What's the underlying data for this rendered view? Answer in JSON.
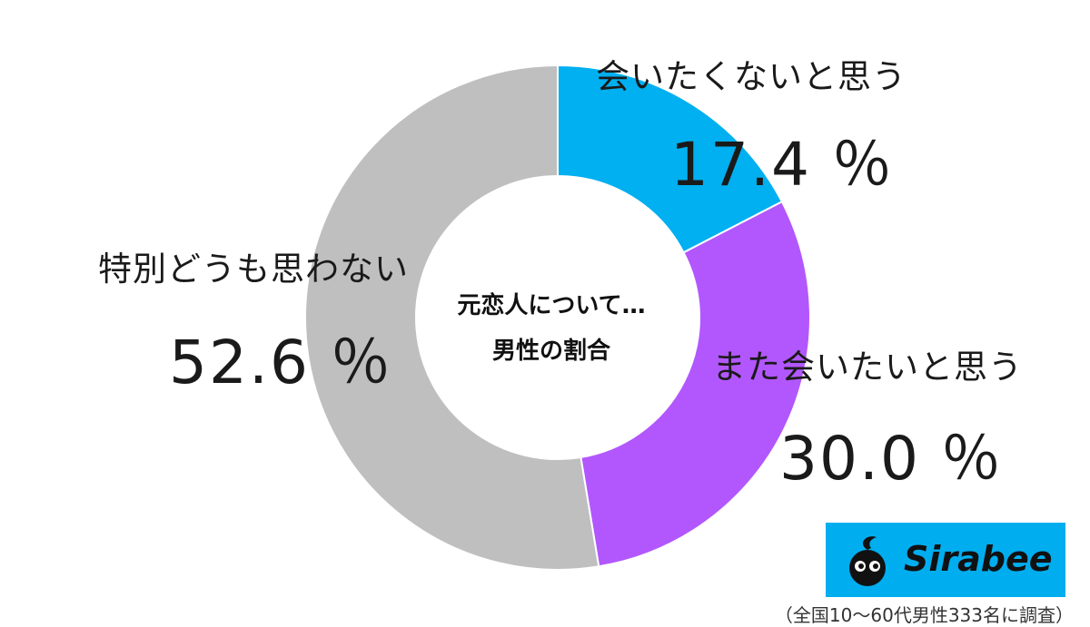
{
  "chart_data": {
    "type": "pie",
    "variant": "donut",
    "center_text": [
      "元恋人について…",
      "男性の割合"
    ],
    "unit": "%",
    "slices": [
      {
        "label": "会いたくないと思う",
        "value": 17.4,
        "display": "17.4 ％",
        "color": "#00b0f0"
      },
      {
        "label": "また会いたいと思う",
        "value": 30.0,
        "display": "30.0 ％",
        "color": "#b257fd"
      },
      {
        "label": "特別どうも思わない",
        "value": 52.6,
        "display": "52.6 ％",
        "color": "#bfbfbf"
      }
    ],
    "start": "top",
    "direction": "clockwise",
    "legend": "none"
  },
  "branding": {
    "logo_icon": "sirabee-mascot-icon",
    "logo_text": "Sirabee",
    "logo_bg": "#00aeef"
  },
  "footnote": "（全国10～60代男性333名に調査）"
}
